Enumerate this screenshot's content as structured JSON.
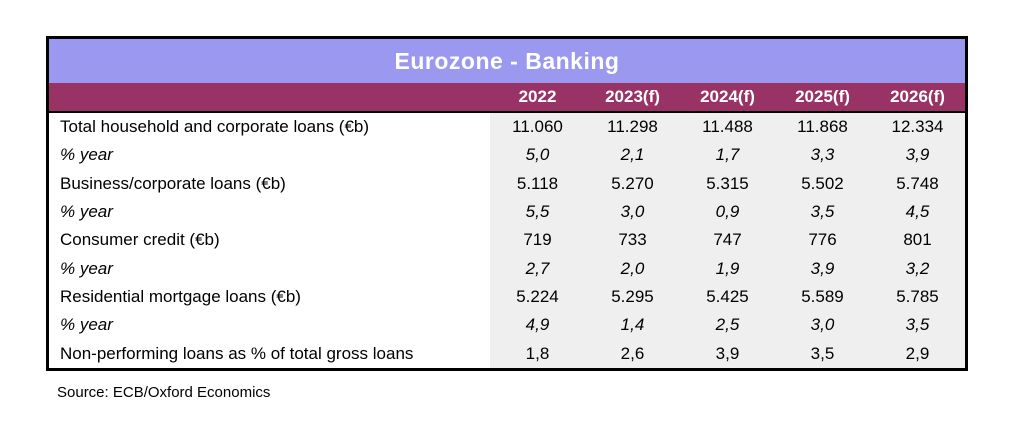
{
  "title": "Eurozone - Banking",
  "source": "Source: ECB/Oxford Economics",
  "colors": {
    "title_bg": "#9A99EF",
    "header_bg": "#993366",
    "data_bg": "#EFEFEF",
    "title_text": "#FFFFFF",
    "header_text": "#FFFFFF",
    "body_text": "#000000",
    "table_border": "#000000"
  },
  "chart_data": {
    "type": "table",
    "title": "Eurozone - Banking",
    "columns": [
      "2022",
      "2023(f)",
      "2024(f)",
      "2025(f)",
      "2026(f)"
    ],
    "rows": [
      {
        "label": "Total household and corporate loans (€b)",
        "italic": false,
        "values": [
          "11.060",
          "11.298",
          "11.488",
          "11.868",
          "12.334"
        ]
      },
      {
        "label": "% year",
        "italic": true,
        "values": [
          "5,0",
          "2,1",
          "1,7",
          "3,3",
          "3,9"
        ]
      },
      {
        "label": "Business/corporate loans (€b)",
        "italic": false,
        "values": [
          "5.118",
          "5.270",
          "5.315",
          "5.502",
          "5.748"
        ]
      },
      {
        "label": "% year",
        "italic": true,
        "values": [
          "5,5",
          "3,0",
          "0,9",
          "3,5",
          "4,5"
        ]
      },
      {
        "label": "Consumer credit (€b)",
        "italic": false,
        "values": [
          "719",
          "733",
          "747",
          "776",
          "801"
        ]
      },
      {
        "label": "% year",
        "italic": true,
        "values": [
          "2,7",
          "2,0",
          "1,9",
          "3,9",
          "3,2"
        ]
      },
      {
        "label": "Residential mortgage loans (€b)",
        "italic": false,
        "values": [
          "5.224",
          "5.295",
          "5.425",
          "5.589",
          "5.785"
        ]
      },
      {
        "label": "% year",
        "italic": true,
        "values": [
          "4,9",
          "1,4",
          "2,5",
          "3,0",
          "3,5"
        ]
      },
      {
        "label": "Non-performing loans as % of total gross loans",
        "italic": false,
        "values": [
          "1,8",
          "2,6",
          "3,9",
          "3,5",
          "2,9"
        ]
      }
    ],
    "source_note": "Source: ECB/Oxford Economics",
    "layout": {
      "header_align": "center",
      "value_align": "center",
      "label_align": "left"
    }
  }
}
